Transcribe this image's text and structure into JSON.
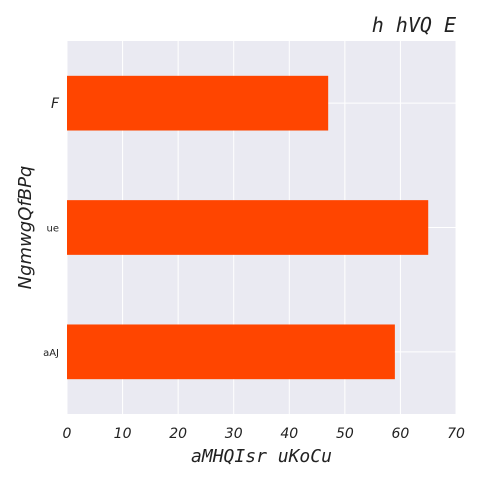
{
  "chart_data": {
    "type": "bar",
    "orientation": "horizontal",
    "title": "h hVQ E",
    "xlabel": "aMHQIsr  uKoCu",
    "ylabel": "NgmwgQfBPq",
    "categories": [
      "aAJ",
      "ue",
      "F"
    ],
    "values": [
      59,
      65,
      47
    ],
    "xlim": [
      0,
      70
    ],
    "xticks": [
      "0",
      "10",
      "20",
      "30",
      "40",
      "50",
      "60",
      "70"
    ],
    "grid": true,
    "legend": "none",
    "colors": {
      "bar": "#ff4500",
      "plot_background": "#eaeaf2",
      "grid": "#ffffff"
    }
  }
}
